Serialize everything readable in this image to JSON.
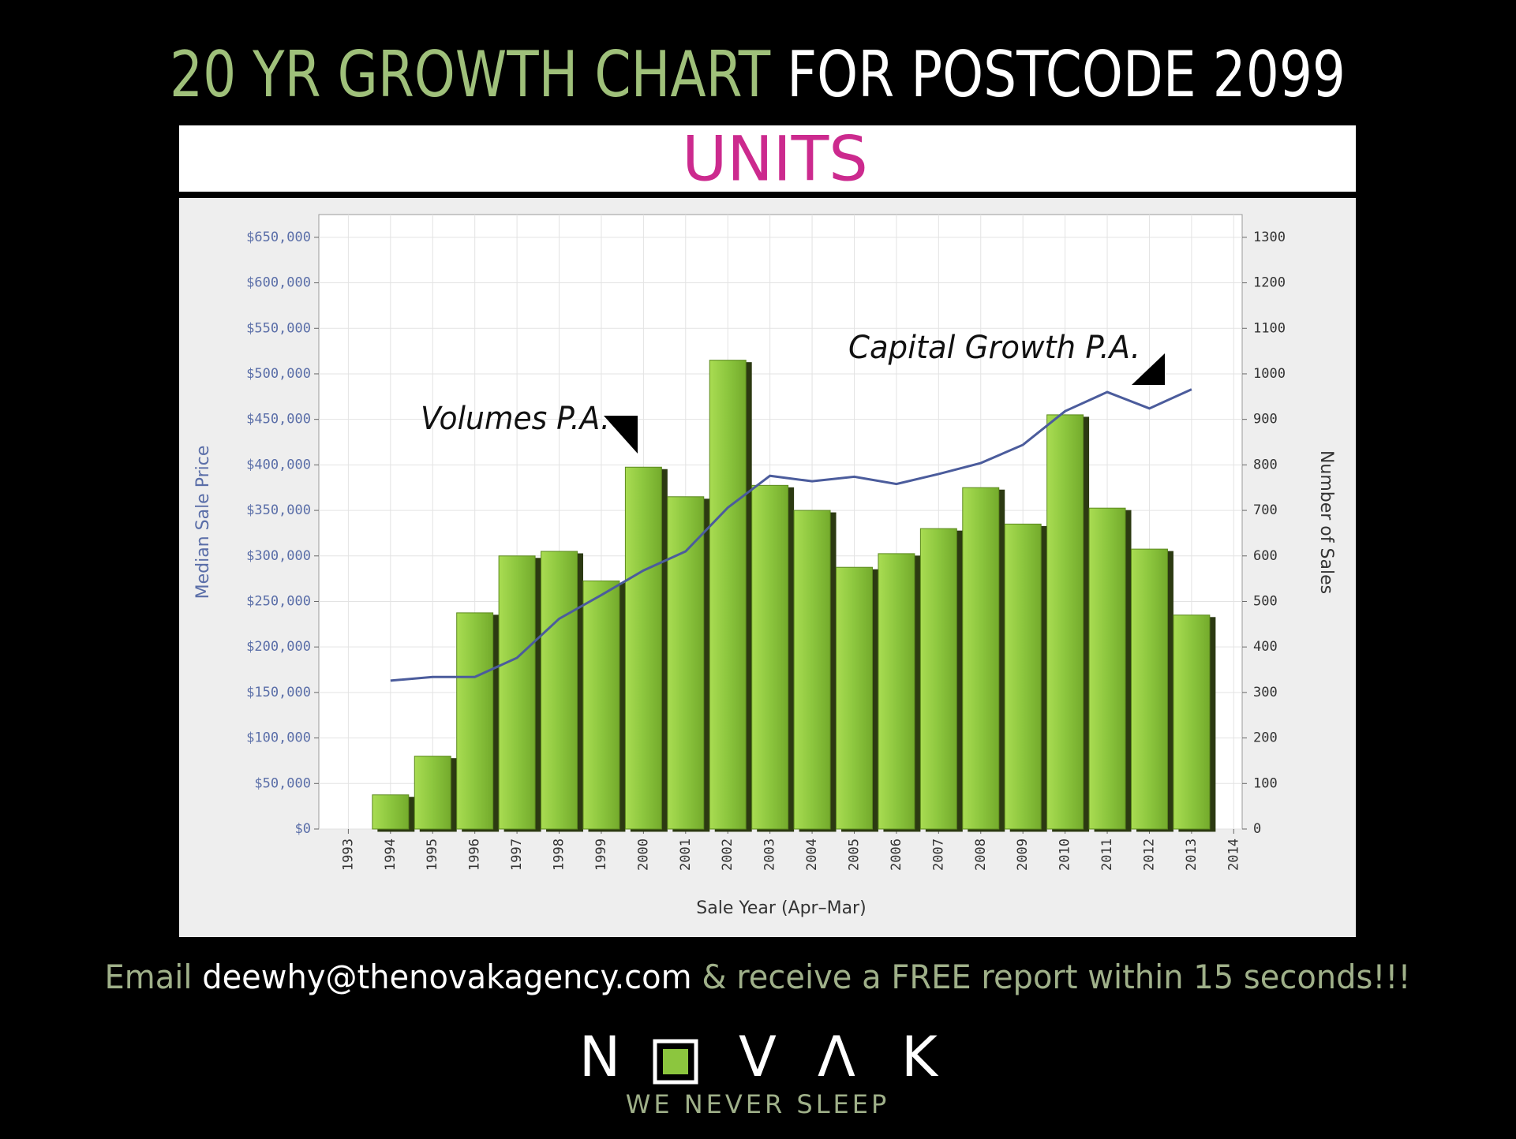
{
  "header": {
    "title_part1": "20 YR GROWTH CHART",
    "title_part2": "FOR POSTCODE 2099",
    "banner": "UNITS"
  },
  "chart_data": {
    "type": "bar-line",
    "xlabel": "Sale Year (Apr–Mar)",
    "ylabel": "Median Sale Price",
    "y2label": "Number of Sales",
    "xlim": [
      1992.3,
      2014.2
    ],
    "xticks": [
      1993,
      1994,
      1995,
      1996,
      1997,
      1998,
      1999,
      2000,
      2001,
      2002,
      2003,
      2004,
      2005,
      2006,
      2007,
      2008,
      2009,
      2010,
      2011,
      2012,
      2013,
      2014
    ],
    "ylim": [
      0,
      675000
    ],
    "yticks": [
      {
        "value": 0,
        "label": "$0"
      },
      {
        "value": 50000,
        "label": "$50,000"
      },
      {
        "value": 100000,
        "label": "$100,000"
      },
      {
        "value": 150000,
        "label": "$150,000"
      },
      {
        "value": 200000,
        "label": "$200,000"
      },
      {
        "value": 250000,
        "label": "$250,000"
      },
      {
        "value": 300000,
        "label": "$300,000"
      },
      {
        "value": 350000,
        "label": "$350,000"
      },
      {
        "value": 400000,
        "label": "$400,000"
      },
      {
        "value": 450000,
        "label": "$450,000"
      },
      {
        "value": 500000,
        "label": "$500,000"
      },
      {
        "value": 550000,
        "label": "$550,000"
      },
      {
        "value": 600000,
        "label": "$600,000"
      },
      {
        "value": 650000,
        "label": "$650,000"
      }
    ],
    "y2lim": [
      0,
      1350
    ],
    "y2ticks": [
      0,
      100,
      200,
      300,
      400,
      500,
      600,
      700,
      800,
      900,
      1000,
      1100,
      1200,
      1300
    ],
    "grid": true,
    "x": [
      1994,
      1995,
      1996,
      1997,
      1998,
      1999,
      2000,
      2001,
      2002,
      2003,
      2004,
      2005,
      2006,
      2007,
      2008,
      2009,
      2010,
      2011,
      2012,
      2013
    ],
    "series": [
      {
        "type": "bar",
        "axis": "y2",
        "color": "#8cc63e",
        "values": [
          75,
          160,
          475,
          600,
          610,
          545,
          795,
          730,
          1030,
          755,
          700,
          575,
          605,
          660,
          750,
          670,
          910,
          705,
          615,
          470
        ]
      },
      {
        "type": "line",
        "axis": "y",
        "color": "#4b5c9c",
        "values": [
          163000,
          167000,
          167000,
          188000,
          231000,
          257000,
          284000,
          305000,
          353000,
          388000,
          382000,
          387000,
          379000,
          390000,
          402000,
          422000,
          459000,
          480000,
          462000,
          483000
        ]
      }
    ],
    "annotations": [
      "Volumes P.A.",
      "Capital Growth P.A."
    ]
  },
  "footer": {
    "text1": "Email",
    "email": "deewhy@thenovakagency.com",
    "text2": "& receive a FREE report within 15 seconds!!!"
  },
  "logo": {
    "letters": [
      "N",
      "V",
      "Λ",
      "K"
    ],
    "tagline": "WE NEVER SLEEP"
  }
}
